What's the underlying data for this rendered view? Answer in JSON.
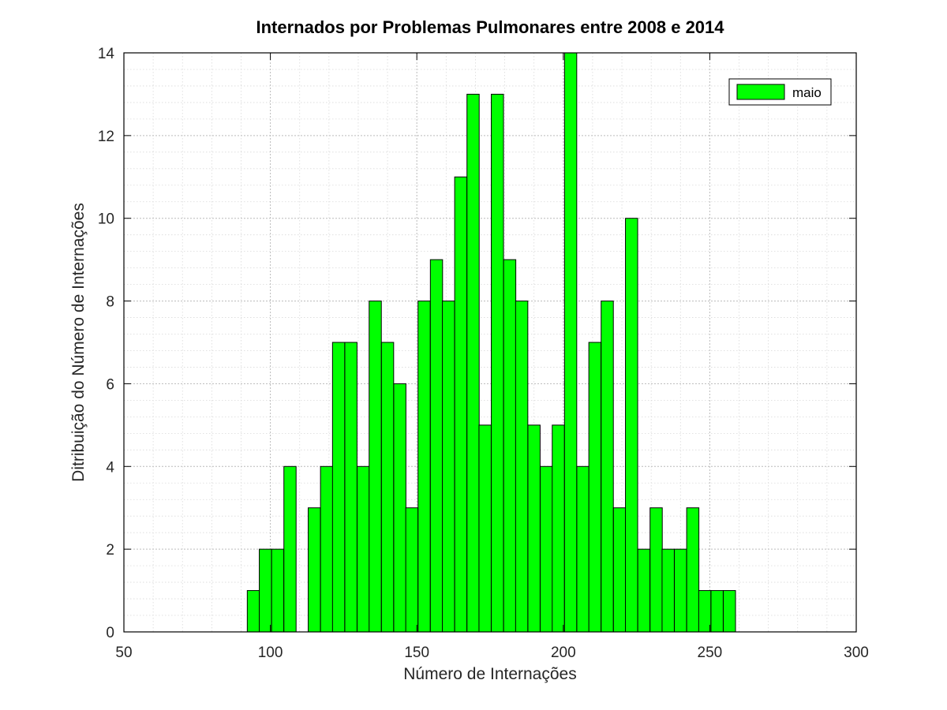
{
  "chart_data": {
    "type": "bar",
    "title": "Internados por Problemas Pulmonares entre 2008 e 2014",
    "xlabel": "Número de Internações",
    "ylabel": "Ditribuição do Número de Internações",
    "xlim": [
      50,
      300
    ],
    "ylim": [
      0,
      14
    ],
    "x_ticks": [
      "50",
      "100",
      "150",
      "200",
      "250",
      "300"
    ],
    "y_ticks": [
      "0",
      "2",
      "4",
      "6",
      "8",
      "10",
      "12",
      "14"
    ],
    "grid": true,
    "minor_grid": true,
    "legend_position": "top-right",
    "bar_color": "#00ff00",
    "bar_edge_color": "#000000",
    "bin_width": 4.17,
    "series": [
      {
        "name": "maio",
        "x": [
          94.2,
          98.3,
          102.5,
          106.7,
          110.8,
          115.0,
          119.2,
          123.3,
          127.5,
          131.7,
          135.8,
          140.0,
          144.2,
          148.3,
          152.5,
          156.7,
          160.8,
          165.0,
          169.2,
          173.3,
          177.5,
          181.7,
          185.8,
          190.0,
          194.2,
          198.3,
          202.5,
          206.7,
          210.8,
          215.0,
          219.2,
          223.3,
          227.5,
          231.7,
          235.8,
          240.0,
          244.2,
          248.3,
          252.5,
          256.7
        ],
        "values": [
          1,
          2,
          2,
          4,
          0,
          3,
          4,
          7,
          7,
          4,
          8,
          7,
          6,
          3,
          8,
          9,
          8,
          11,
          13,
          5,
          13,
          9,
          8,
          5,
          4,
          5,
          14,
          4,
          7,
          8,
          3,
          10,
          2,
          3,
          2,
          2,
          3,
          1,
          1,
          1
        ]
      }
    ]
  }
}
